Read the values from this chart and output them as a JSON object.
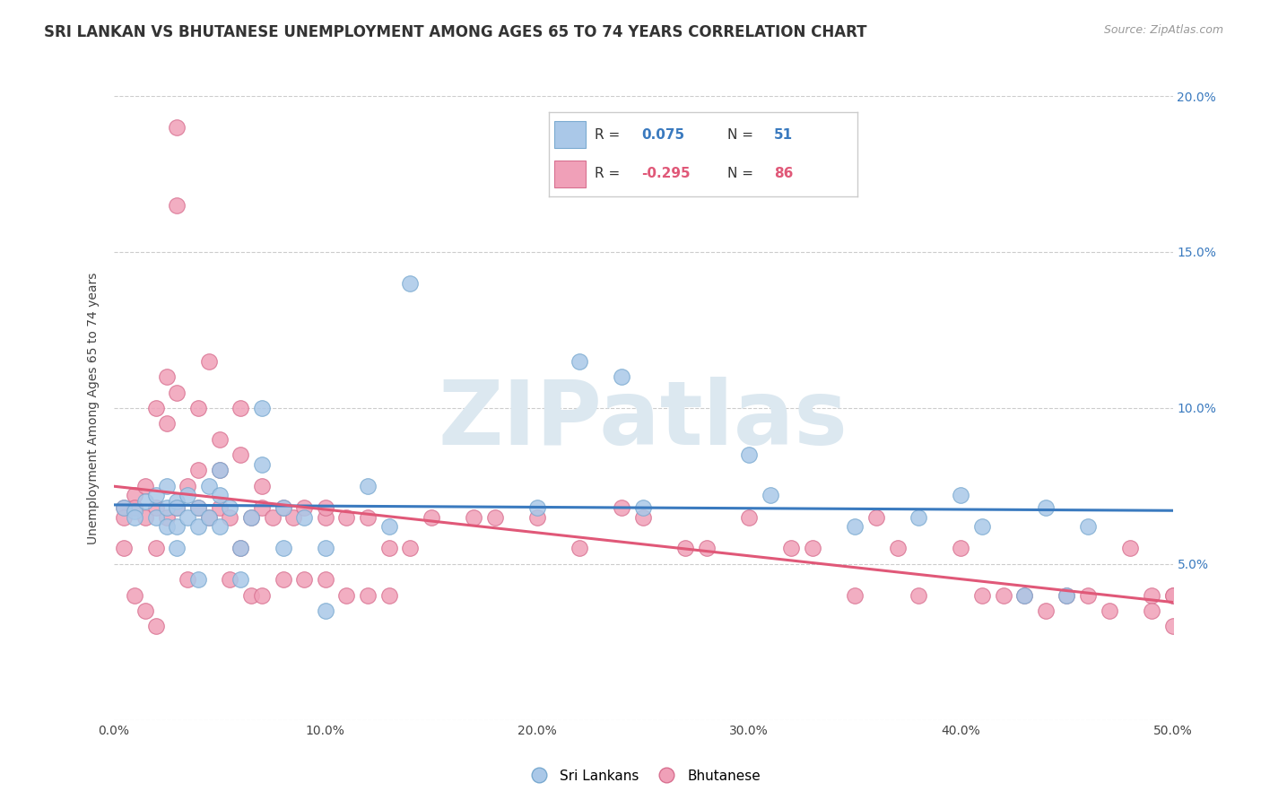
{
  "title": "SRI LANKAN VS BHUTANESE UNEMPLOYMENT AMONG AGES 65 TO 74 YEARS CORRELATION CHART",
  "source": "Source: ZipAtlas.com",
  "ylabel": "Unemployment Among Ages 65 to 74 years",
  "xlim": [
    0.0,
    0.5
  ],
  "ylim": [
    0.0,
    0.2
  ],
  "xticks": [
    0.0,
    0.1,
    0.2,
    0.3,
    0.4,
    0.5
  ],
  "yticks": [
    0.0,
    0.05,
    0.1,
    0.15,
    0.2
  ],
  "xtick_labels": [
    "0.0%",
    "10.0%",
    "20.0%",
    "30.0%",
    "40.0%",
    "50.0%"
  ],
  "ytick_labels_right": [
    "",
    "5.0%",
    "10.0%",
    "15.0%",
    "20.0%"
  ],
  "blue_line_color": "#3a7abf",
  "pink_line_color": "#e05878",
  "blue_scatter_color": "#aac8e8",
  "pink_scatter_color": "#f0a0b8",
  "blue_scatter_edge": "#7aaad0",
  "pink_scatter_edge": "#d87090",
  "watermark_color": "#dce8f0",
  "background_color": "#ffffff",
  "grid_color": "#cccccc",
  "title_fontsize": 12,
  "axis_label_fontsize": 10,
  "tick_fontsize": 10,
  "right_tick_color": "#3a7abf",
  "sri_lankan_x": [
    0.005,
    0.01,
    0.01,
    0.015,
    0.02,
    0.02,
    0.025,
    0.025,
    0.025,
    0.03,
    0.03,
    0.03,
    0.03,
    0.035,
    0.035,
    0.04,
    0.04,
    0.04,
    0.045,
    0.045,
    0.05,
    0.05,
    0.05,
    0.055,
    0.06,
    0.06,
    0.065,
    0.07,
    0.07,
    0.08,
    0.08,
    0.09,
    0.1,
    0.1,
    0.12,
    0.13,
    0.14,
    0.2,
    0.22,
    0.24,
    0.25,
    0.3,
    0.31,
    0.35,
    0.38,
    0.4,
    0.41,
    0.43,
    0.44,
    0.45,
    0.46
  ],
  "sri_lankan_y": [
    0.068,
    0.067,
    0.065,
    0.07,
    0.072,
    0.065,
    0.075,
    0.068,
    0.062,
    0.07,
    0.068,
    0.062,
    0.055,
    0.072,
    0.065,
    0.068,
    0.062,
    0.045,
    0.075,
    0.065,
    0.08,
    0.072,
    0.062,
    0.068,
    0.055,
    0.045,
    0.065,
    0.1,
    0.082,
    0.068,
    0.055,
    0.065,
    0.055,
    0.035,
    0.075,
    0.062,
    0.14,
    0.068,
    0.115,
    0.11,
    0.068,
    0.085,
    0.072,
    0.062,
    0.065,
    0.072,
    0.062,
    0.04,
    0.068,
    0.04,
    0.062
  ],
  "bhutanese_x": [
    0.005,
    0.005,
    0.005,
    0.01,
    0.01,
    0.01,
    0.015,
    0.015,
    0.015,
    0.02,
    0.02,
    0.02,
    0.02,
    0.025,
    0.025,
    0.025,
    0.03,
    0.03,
    0.03,
    0.03,
    0.035,
    0.035,
    0.04,
    0.04,
    0.04,
    0.045,
    0.045,
    0.05,
    0.05,
    0.05,
    0.055,
    0.055,
    0.06,
    0.06,
    0.06,
    0.065,
    0.065,
    0.07,
    0.07,
    0.07,
    0.075,
    0.08,
    0.08,
    0.085,
    0.09,
    0.09,
    0.1,
    0.1,
    0.1,
    0.11,
    0.11,
    0.12,
    0.12,
    0.13,
    0.13,
    0.14,
    0.15,
    0.17,
    0.18,
    0.2,
    0.22,
    0.24,
    0.25,
    0.27,
    0.28,
    0.3,
    0.32,
    0.33,
    0.35,
    0.36,
    0.37,
    0.38,
    0.4,
    0.41,
    0.42,
    0.43,
    0.44,
    0.45,
    0.46,
    0.47,
    0.48,
    0.49,
    0.49,
    0.5,
    0.5,
    0.5
  ],
  "bhutanese_y": [
    0.068,
    0.065,
    0.055,
    0.072,
    0.068,
    0.04,
    0.075,
    0.065,
    0.035,
    0.1,
    0.068,
    0.055,
    0.03,
    0.11,
    0.095,
    0.065,
    0.19,
    0.165,
    0.105,
    0.068,
    0.075,
    0.045,
    0.1,
    0.08,
    0.068,
    0.115,
    0.065,
    0.09,
    0.08,
    0.068,
    0.065,
    0.045,
    0.1,
    0.085,
    0.055,
    0.065,
    0.04,
    0.075,
    0.068,
    0.04,
    0.065,
    0.068,
    0.045,
    0.065,
    0.068,
    0.045,
    0.065,
    0.068,
    0.045,
    0.065,
    0.04,
    0.065,
    0.04,
    0.055,
    0.04,
    0.055,
    0.065,
    0.065,
    0.065,
    0.065,
    0.055,
    0.068,
    0.065,
    0.055,
    0.055,
    0.065,
    0.055,
    0.055,
    0.04,
    0.065,
    0.055,
    0.04,
    0.055,
    0.04,
    0.04,
    0.04,
    0.035,
    0.04,
    0.04,
    0.035,
    0.055,
    0.04,
    0.035,
    0.04,
    0.03,
    0.04
  ]
}
